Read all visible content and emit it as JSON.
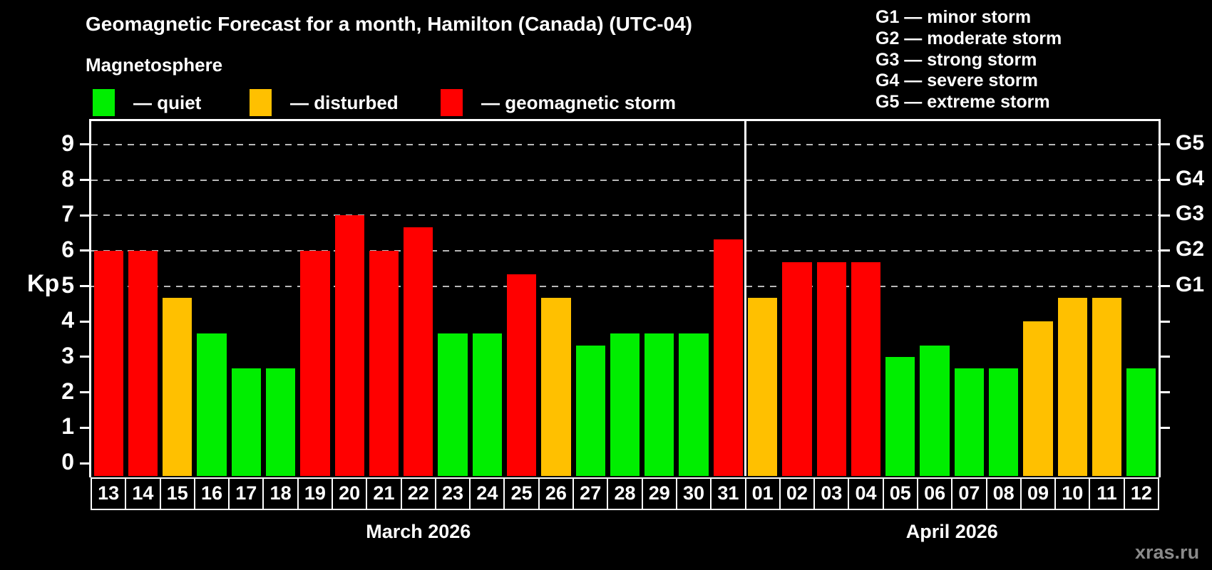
{
  "title": "Geomagnetic Forecast for a month, Hamilton (Canada) (UTC-04)",
  "subtitle": "Magnetosphere",
  "legend": {
    "items": [
      {
        "key": "quiet",
        "label": "— quiet"
      },
      {
        "key": "disturbed",
        "label": "— disturbed"
      },
      {
        "key": "storm",
        "label": "— geomagnetic storm"
      }
    ]
  },
  "g_legend": {
    "lines": [
      "G1 — minor storm",
      "G2 — moderate storm",
      "G3 — strong storm",
      "G4 — severe storm",
      "G5 — extreme storm"
    ]
  },
  "watermark": "xras.ru",
  "colors": {
    "quiet": "#00ee00",
    "disturbed": "#ffc000",
    "storm": "#ff0000",
    "background": "#000000",
    "axis": "#ffffff",
    "gridline": "#b8b8b8",
    "watermark": "#8a8a8a"
  },
  "chart_data": {
    "type": "bar",
    "ylabel": "Kp",
    "ylim": [
      0,
      9
    ],
    "y_ticks": [
      0,
      1,
      2,
      3,
      4,
      5,
      6,
      7,
      8,
      9
    ],
    "grid": "dashed horizontal lines at Kp 5,6,7,8,9",
    "legend_position": "top",
    "right_axis": [
      {
        "kp": 5,
        "label": "G1"
      },
      {
        "kp": 6,
        "label": "G2"
      },
      {
        "kp": 7,
        "label": "G3"
      },
      {
        "kp": 8,
        "label": "G4"
      },
      {
        "kp": 9,
        "label": "G5"
      }
    ],
    "months": [
      {
        "label": "March 2026",
        "days": [
          {
            "date": "13",
            "kp": 6,
            "condition": "storm"
          },
          {
            "date": "14",
            "kp": 6,
            "condition": "storm"
          },
          {
            "date": "15",
            "kp": 4.67,
            "condition": "disturbed"
          },
          {
            "date": "16",
            "kp": 3.67,
            "condition": "quiet"
          },
          {
            "date": "17",
            "kp": 2.67,
            "condition": "quiet"
          },
          {
            "date": "18",
            "kp": 2.67,
            "condition": "quiet"
          },
          {
            "date": "19",
            "kp": 6,
            "condition": "storm"
          },
          {
            "date": "20",
            "kp": 7,
            "condition": "storm"
          },
          {
            "date": "21",
            "kp": 6,
            "condition": "storm"
          },
          {
            "date": "22",
            "kp": 6.67,
            "condition": "storm"
          },
          {
            "date": "23",
            "kp": 3.67,
            "condition": "quiet"
          },
          {
            "date": "24",
            "kp": 3.67,
            "condition": "quiet"
          },
          {
            "date": "25",
            "kp": 5.33,
            "condition": "storm"
          },
          {
            "date": "26",
            "kp": 4.67,
            "condition": "disturbed"
          },
          {
            "date": "27",
            "kp": 3.33,
            "condition": "quiet"
          },
          {
            "date": "28",
            "kp": 3.67,
            "condition": "quiet"
          },
          {
            "date": "29",
            "kp": 3.67,
            "condition": "quiet"
          },
          {
            "date": "30",
            "kp": 3.67,
            "condition": "quiet"
          },
          {
            "date": "31",
            "kp": 6.33,
            "condition": "storm"
          }
        ]
      },
      {
        "label": "April 2026",
        "days": [
          {
            "date": "01",
            "kp": 4.67,
            "condition": "disturbed"
          },
          {
            "date": "02",
            "kp": 5.67,
            "condition": "storm"
          },
          {
            "date": "03",
            "kp": 5.67,
            "condition": "storm"
          },
          {
            "date": "04",
            "kp": 5.67,
            "condition": "storm"
          },
          {
            "date": "05",
            "kp": 3,
            "condition": "quiet"
          },
          {
            "date": "06",
            "kp": 3.33,
            "condition": "quiet"
          },
          {
            "date": "07",
            "kp": 2.67,
            "condition": "quiet"
          },
          {
            "date": "08",
            "kp": 2.67,
            "condition": "quiet"
          },
          {
            "date": "09",
            "kp": 4,
            "condition": "disturbed"
          },
          {
            "date": "10",
            "kp": 4.67,
            "condition": "disturbed"
          },
          {
            "date": "11",
            "kp": 4.67,
            "condition": "disturbed"
          },
          {
            "date": "12",
            "kp": 2.67,
            "condition": "quiet"
          }
        ]
      }
    ]
  }
}
